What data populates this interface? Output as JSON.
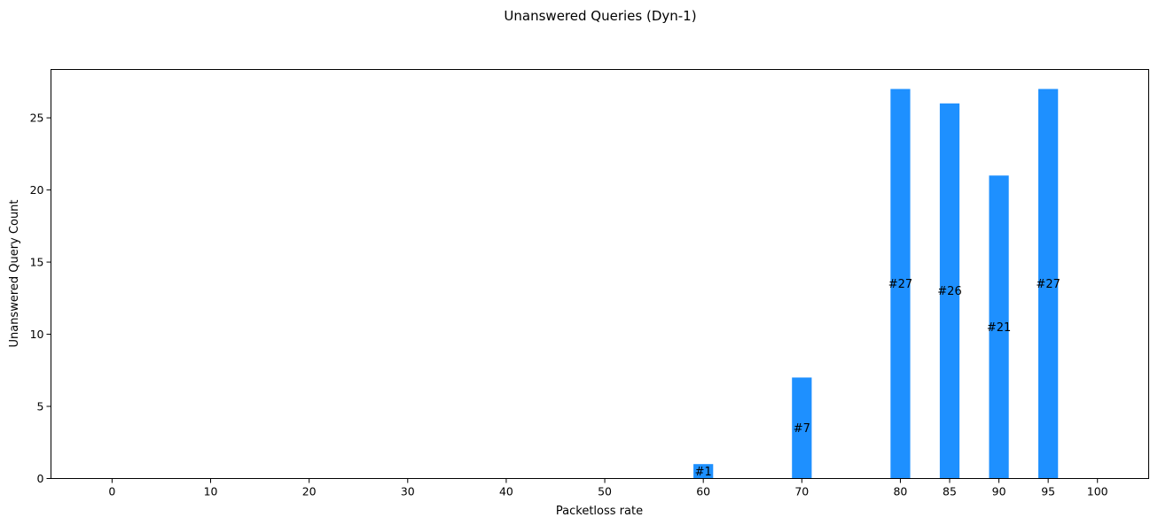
{
  "chart_data": {
    "type": "bar",
    "title": "Unanswered Queries (Dyn-1)",
    "xlabel": "Packetloss rate",
    "ylabel": "Unanswered Query Count",
    "xticks": [
      0,
      10,
      20,
      30,
      40,
      50,
      60,
      70,
      80,
      85,
      90,
      95,
      100
    ],
    "yticks": [
      0,
      5,
      10,
      15,
      20,
      25
    ],
    "xlim": [
      -6.2,
      105.2
    ],
    "ylim": [
      0,
      28.35
    ],
    "bar_width": 2.0,
    "bar_color": "#1e90ff",
    "grid": false,
    "bars": [
      {
        "x": 60,
        "value": 1,
        "label": "#1"
      },
      {
        "x": 70,
        "value": 7,
        "label": "#7"
      },
      {
        "x": 80,
        "value": 27,
        "label": "#27"
      },
      {
        "x": 85,
        "value": 26,
        "label": "#26"
      },
      {
        "x": 90,
        "value": 21,
        "label": "#21"
      },
      {
        "x": 95,
        "value": 27,
        "label": "#27"
      }
    ]
  }
}
